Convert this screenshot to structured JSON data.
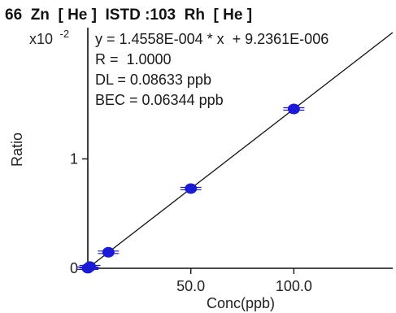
{
  "chart_data": {
    "type": "scatter",
    "title": "66  Zn  [ He ]  ISTD :103  Rh  [ He ]",
    "xlabel": "Conc(ppb)",
    "ylabel": "Ratio",
    "y_exponent_base": "x10",
    "y_exponent_power": "-2",
    "xlim": [
      0,
      148
    ],
    "ylim": [
      0,
      2.2
    ],
    "x_ticks": [
      {
        "value": 50,
        "label": "50.0"
      },
      {
        "value": 100,
        "label": "100.0"
      }
    ],
    "y_ticks": [
      {
        "value": 0,
        "label": "0"
      },
      {
        "value": 1,
        "label": "1"
      }
    ],
    "grid": false,
    "series": [
      {
        "points": [
          {
            "x": 0,
            "y": 0.0009
          },
          {
            "x": 1,
            "y": 0.0155
          },
          {
            "x": 10,
            "y": 0.1465
          },
          {
            "x": 50,
            "y": 0.7288
          },
          {
            "x": 100,
            "y": 1.4567
          }
        ]
      }
    ],
    "fit_line": {
      "slope": 0.014558,
      "intercept": 0.00092361
    },
    "annotations": [
      "y = 1.4558E-004 * x  + 9.2361E-006",
      "R =  1.0000",
      "DL = 0.08633 ppb",
      "BEC = 0.06344 ppb"
    ],
    "colors": {
      "point": "#1b1bd6",
      "line": "#111111",
      "axis": "#111111"
    }
  }
}
